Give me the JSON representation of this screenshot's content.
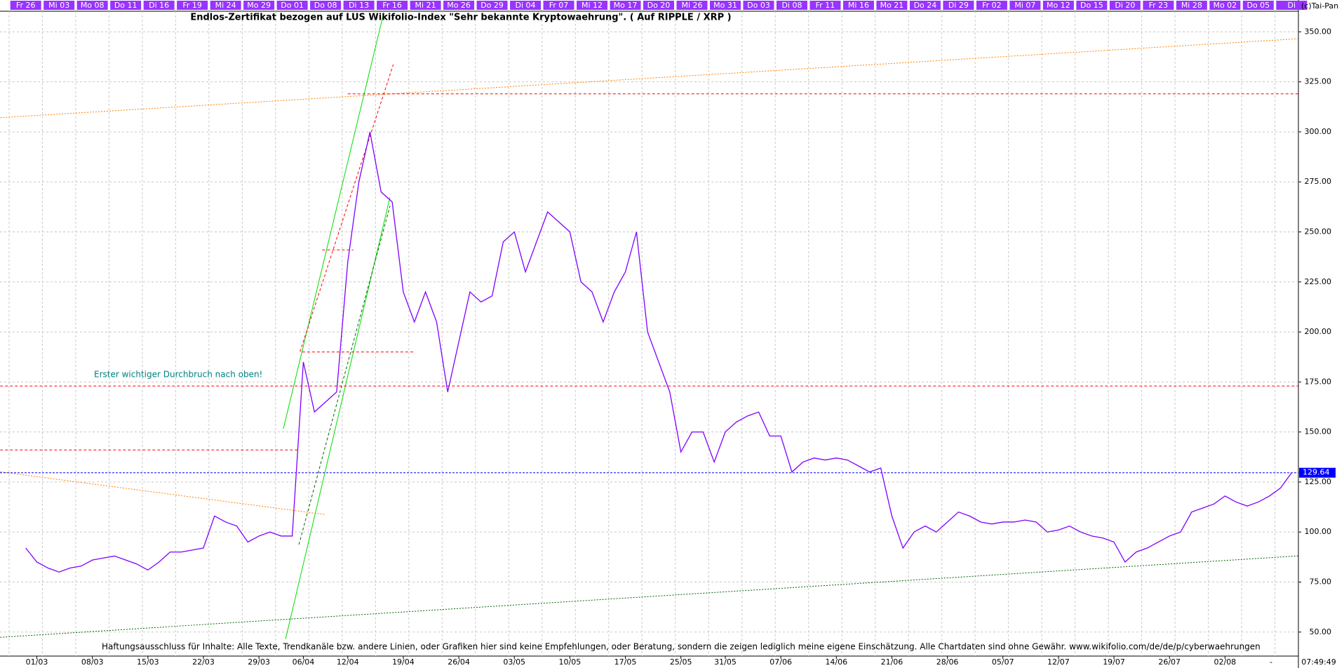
{
  "chart_data": {
    "type": "line",
    "title": "Endlos-Zertifikat bezogen auf LUS Wikifolio-Index \"Sehr bekannte Kryptowaehrung\". ( Auf RIPPLE / XRP )",
    "copyright": "(c)Tai-Pan",
    "annotation": "Erster wichtiger Durchbruch nach oben!",
    "disclaimer": "Haftungsausschluss für Inhalte: Alle Texte, Trendkanäle bzw. andere Linien, oder Grafiken hier sind keine Empfehlungen, oder Beratung, sondern die zeigen lediglich meine eigene Einschätzung. Alle Chartdaten sind ohne Gewähr.  www.wikifolio.com/de/de/p/cyberwaehrungen",
    "clock": "07:49:49",
    "corner_mark": "-",
    "color": "#7f00ff",
    "categories": [
      null,
      "01/03",
      null,
      null,
      null,
      null,
      "08/03",
      null,
      null,
      null,
      null,
      "15/03",
      null,
      null,
      null,
      null,
      "22/03",
      null,
      null,
      null,
      null,
      "29/03",
      null,
      null,
      null,
      "06/04",
      null,
      null,
      null,
      "12/04",
      null,
      null,
      null,
      null,
      "19/04",
      null,
      null,
      null,
      null,
      "26/04",
      null,
      null,
      null,
      null,
      "03/05",
      null,
      null,
      null,
      null,
      "10/05",
      null,
      null,
      null,
      null,
      "17/05",
      null,
      null,
      null,
      null,
      "25/05",
      null,
      null,
      null,
      "31/05",
      null,
      null,
      null,
      null,
      "07/06",
      null,
      null,
      null,
      null,
      "14/06",
      null,
      null,
      null,
      null,
      "21/06",
      null,
      null,
      null,
      null,
      "28/06",
      null,
      null,
      null,
      null,
      "05/07",
      null,
      null,
      null,
      null,
      "12/07",
      null,
      null,
      null,
      null,
      "19/07",
      null,
      null,
      null,
      null,
      "26/07",
      null,
      null,
      null,
      null,
      "02/08",
      null,
      null,
      null,
      null,
      null,
      null
    ],
    "top_labels": [
      "Fr 26",
      null,
      null,
      "Mi 03",
      null,
      null,
      "Mo 08",
      null,
      null,
      "Do 11",
      null,
      null,
      "Di 16",
      null,
      null,
      "Fr 19",
      null,
      null,
      "Mi 24",
      null,
      null,
      "Mo 29",
      null,
      null,
      "Do 01",
      null,
      null,
      "Do 08",
      null,
      null,
      "Di 13",
      null,
      null,
      "Fr 16",
      null,
      null,
      "Mi 21",
      null,
      null,
      "Mo 26",
      null,
      null,
      "Do 29",
      null,
      null,
      "Di 04",
      null,
      null,
      "Fr 07",
      null,
      null,
      "Mi 12",
      null,
      null,
      "Mo 17",
      null,
      null,
      "Do 20",
      null,
      null,
      "Mi 26",
      null,
      null,
      "Mo 31",
      null,
      null,
      "Do 03",
      null,
      null,
      "Di 08",
      null,
      null,
      "Fr 11",
      null,
      null,
      "Mi 16",
      null,
      null,
      "Mo 21",
      null,
      null,
      "Do 24",
      null,
      null,
      "Di 29",
      null,
      null,
      "Fr 02",
      null,
      null,
      "Mi 07",
      null,
      null,
      "Mo 12",
      null,
      null,
      "Do 15",
      null,
      null,
      "Di 20",
      null,
      null,
      "Fr 23",
      null,
      null,
      "Mi 28",
      null,
      null,
      "Mo 02",
      null,
      null,
      "Do 05",
      null,
      null,
      "Di"
    ],
    "values": [
      92,
      85,
      82,
      80,
      82,
      83,
      86,
      87,
      88,
      86,
      84,
      81,
      85,
      90,
      90,
      91,
      92,
      108,
      105,
      103,
      95,
      98,
      100,
      98,
      98,
      185,
      160,
      165,
      170,
      235,
      275,
      300,
      270,
      265,
      220,
      205,
      220,
      205,
      170,
      195,
      220,
      215,
      218,
      245,
      250,
      230,
      245,
      260,
      255,
      250,
      225,
      220,
      205,
      220,
      230,
      250,
      200,
      185,
      170,
      140,
      150,
      150,
      135,
      150,
      155,
      158,
      160,
      148,
      148,
      130,
      135,
      137,
      136,
      137,
      136,
      133,
      130,
      132,
      108,
      92,
      100,
      103,
      100,
      105,
      110,
      108,
      105,
      104,
      105,
      105,
      106,
      105,
      100,
      101,
      103,
      100,
      98,
      97,
      95,
      85,
      90,
      92,
      95,
      98,
      100,
      110,
      112,
      114,
      118,
      115,
      113,
      115,
      118,
      122,
      129.64
    ],
    "last": {
      "value": 129.64,
      "label": "129.64",
      "color": "#0000ff"
    },
    "ylim": [
      38,
      360.3
    ],
    "yticks": [
      {
        "value": 50,
        "label": "50.00"
      },
      {
        "value": 75,
        "label": "75.00"
      },
      {
        "value": 100,
        "label": "100.00"
      },
      {
        "value": 125,
        "label": "125.00"
      },
      {
        "value": 150,
        "label": "150.00"
      },
      {
        "value": 175,
        "label": "175.00"
      },
      {
        "value": 200,
        "label": "200.00"
      },
      {
        "value": 225,
        "label": "225.00"
      },
      {
        "value": 250,
        "label": "250.00"
      },
      {
        "value": 275,
        "label": "275.00"
      },
      {
        "value": 300,
        "label": "300.00"
      },
      {
        "value": 325,
        "label": "325.00"
      },
      {
        "value": 350,
        "label": "350.00"
      }
    ],
    "grid": true,
    "lines": [
      {
        "color": "#00dd00",
        "style": "solid",
        "from": [
          23.2,
          151.6
        ],
        "to": [
          32.2,
          358.6
        ]
      },
      {
        "color": "#00dd00",
        "style": "solid",
        "from": [
          23.4,
          46.5
        ],
        "to": [
          32.8,
          267.3
        ]
      },
      {
        "color": "#ff0000",
        "style": "dashed",
        "from": [
          24.7,
          190.1
        ],
        "to": [
          33.1,
          333.7
        ]
      },
      {
        "color": "#006600",
        "style": "dashed",
        "from": [
          24.6,
          93.7
        ],
        "to": [
          32.8,
          263
        ]
      },
      {
        "color": "#ff8000",
        "style": "dotted",
        "from": [
          -2.3,
          307.1
        ],
        "to": [
          114.7,
          346.6
        ]
      },
      {
        "color": "#ff8000",
        "style": "dotted",
        "from": [
          -2.3,
          130.1
        ],
        "to": [
          27,
          108.7
        ]
      },
      {
        "color": "#006600",
        "style": "dotted",
        "from": [
          -2.3,
          47.4
        ],
        "to": [
          114.7,
          88.1
        ]
      },
      {
        "color": "#ff0000",
        "style": "dashed",
        "from": [
          29,
          319
        ],
        "to": [
          114.7,
          319
        ]
      },
      {
        "color": "#ff0000",
        "style": "dashed",
        "from": [
          -2.3,
          173
        ],
        "to": [
          114.7,
          173
        ]
      },
      {
        "color": "#ff0000",
        "style": "dashed",
        "from": [
          -2.3,
          141
        ],
        "to": [
          24.7,
          141
        ]
      },
      {
        "color": "#ff0000",
        "style": "dashed",
        "from": [
          24.9,
          190
        ],
        "to": [
          34.9,
          190
        ]
      },
      {
        "color": "#ff0000",
        "style": "dashed",
        "from": [
          26.7,
          241
        ],
        "to": [
          29.5,
          241
        ]
      }
    ]
  }
}
